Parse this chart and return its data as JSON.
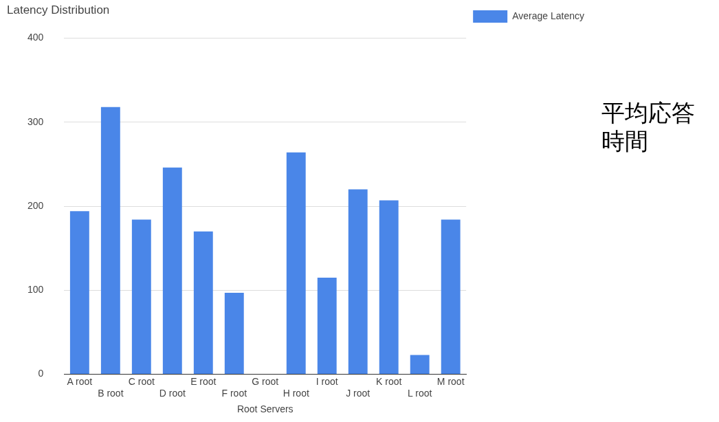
{
  "chart_data": {
    "type": "bar",
    "title": "Latency Distribution",
    "xlabel": "Root Servers",
    "categories": [
      "A root",
      "B root",
      "C root",
      "D root",
      "E root",
      "F root",
      "G root",
      "H root",
      "I root",
      "J root",
      "K root",
      "L root",
      "M root"
    ],
    "series": [
      {
        "name": "Average Latency",
        "color": "#4a86e8",
        "values": [
          194,
          318,
          184,
          246,
          170,
          97,
          0,
          264,
          115,
          220,
          207,
          23,
          184
        ]
      }
    ],
    "ylim": [
      0,
      400
    ],
    "yticks": [
      0,
      100,
      200,
      300,
      400
    ],
    "grid": "y",
    "legend": "right",
    "annotations": [
      "平均応答時間"
    ]
  }
}
